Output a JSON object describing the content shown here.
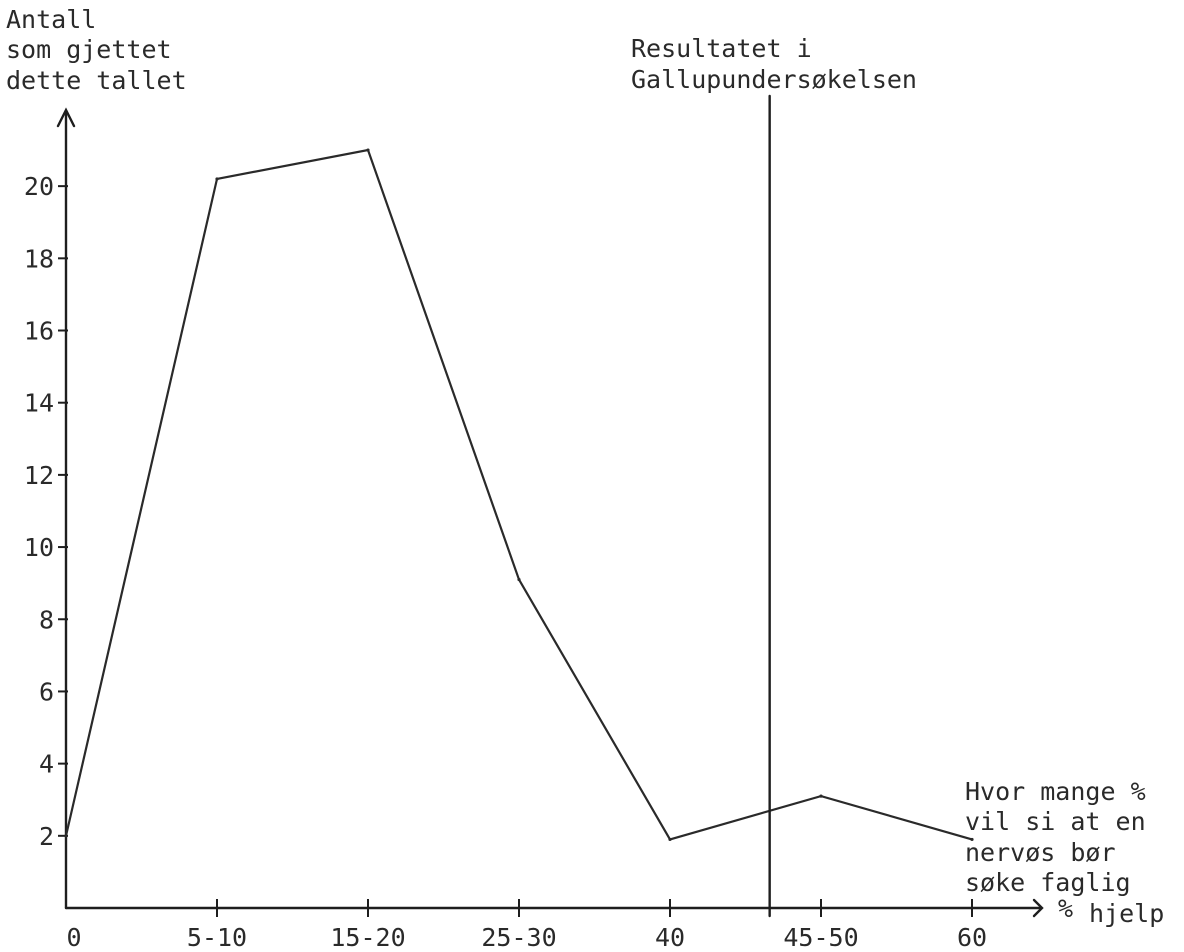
{
  "chart_data": {
    "type": "line",
    "ylabel_lines": [
      "Antall",
      "som gjettet",
      "dette tallet"
    ],
    "xlabel_unit": "%",
    "xlabel_lines": [
      "Hvor mange %",
      "vil si at en",
      "nervøs bør",
      "søke faglig",
      "hjelp"
    ],
    "categories": [
      "0",
      "5-10",
      "15-20",
      "25-30",
      "40",
      "45-50",
      "60"
    ],
    "values": [
      2,
      20.2,
      21,
      9.1,
      1.9,
      3.1,
      1.9
    ],
    "ylim": [
      0,
      21.5
    ],
    "yticks": [
      2,
      4,
      6,
      8,
      10,
      12,
      14,
      16,
      18,
      20
    ],
    "reference_line": {
      "label_lines": [
        "Resultatet i",
        "Gallupundersøkelsen"
      ],
      "x_position_category_index": 4.66
    },
    "grid": false,
    "legend": "none"
  }
}
